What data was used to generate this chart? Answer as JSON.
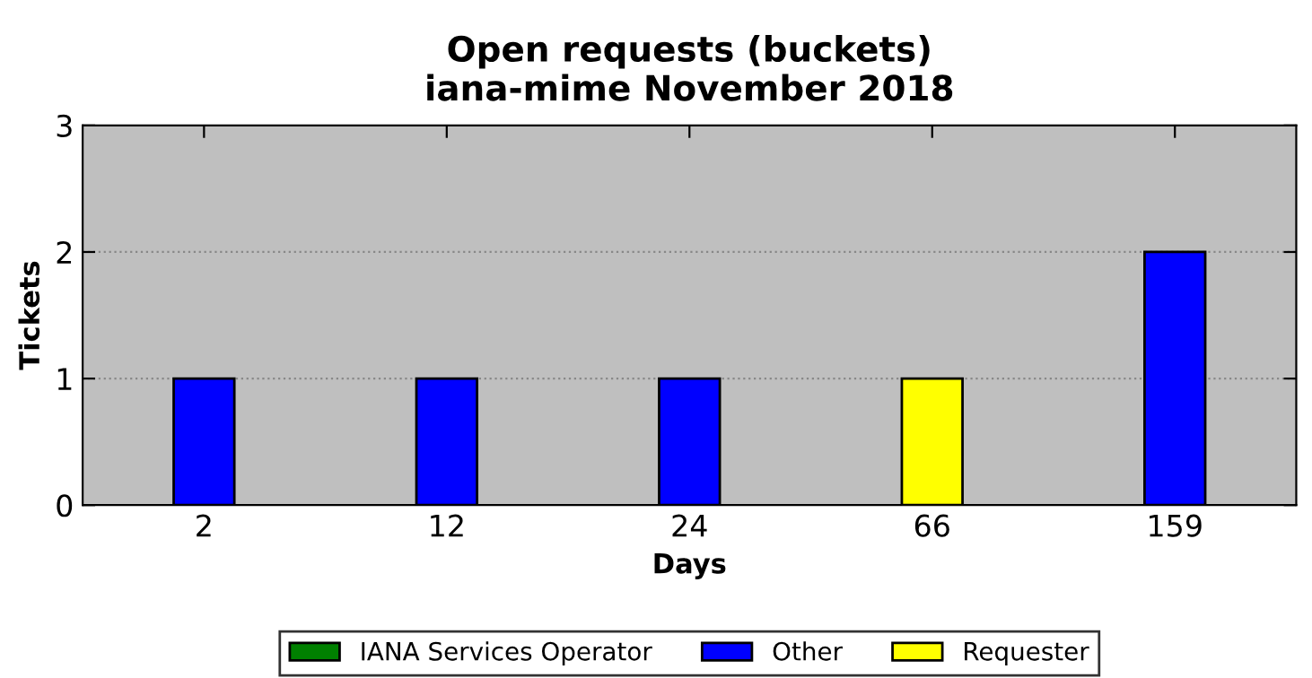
{
  "chart_data": {
    "type": "bar",
    "title": "Open requests (buckets)\niana-mime November 2018",
    "xlabel": "Days",
    "ylabel": "Tickets",
    "categories": [
      "2",
      "12",
      "24",
      "66",
      "159"
    ],
    "series": [
      {
        "name": "IANA Services Operator",
        "color": "#008000",
        "values": [
          null,
          null,
          null,
          null,
          null
        ]
      },
      {
        "name": "Other",
        "color": "#0000ff",
        "values": [
          1,
          1,
          1,
          null,
          2
        ]
      },
      {
        "name": "Requester",
        "color": "#ffff00",
        "values": [
          null,
          null,
          null,
          1,
          null
        ]
      }
    ],
    "stacked": true,
    "ylim": [
      0,
      3
    ],
    "yticks": [
      0,
      1,
      2,
      3
    ],
    "grid": "y",
    "legend": "bottom"
  }
}
